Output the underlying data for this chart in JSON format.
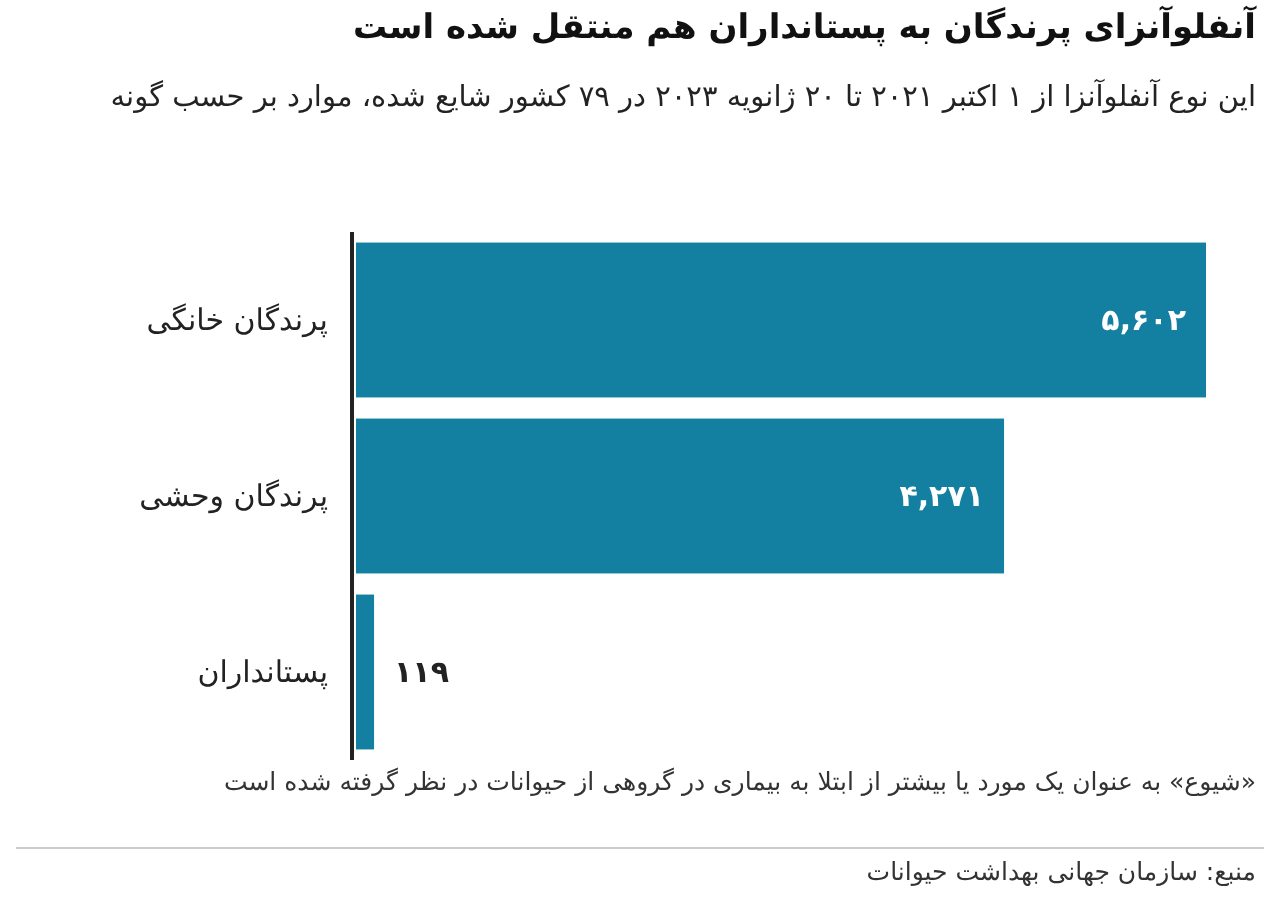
{
  "chart_data": {
    "type": "bar",
    "orientation": "horizontal",
    "title": "آنفلوآنزای پرندگان به پستانداران هم منتقل شده است",
    "subtitle": "این نوع آنفلوآنزا از ۱ اکتبر ۲۰۲۱ تا ۲۰ ژانویه ۲۰۲۳ در ۷۹ کشور شایع شده، موارد بر حسب گونه",
    "categories": [
      "پرندگان خانگی",
      "پرندگان وحشی",
      "پستانداران"
    ],
    "values": [
      5602,
      4271,
      119
    ],
    "value_labels": [
      "۵,۶۰۲",
      "۴,۲۷۱",
      "۱۱۹"
    ],
    "color": "#1380a1",
    "annotations": [
      "«شیوع» به عنوان یک مورد یا بیشتر از ابتلا به بیماری در گروهی از حیوانات در نظر گرفته شده است",
      "منبع: سازمان جهانی بهداشت حیوانات"
    ]
  }
}
